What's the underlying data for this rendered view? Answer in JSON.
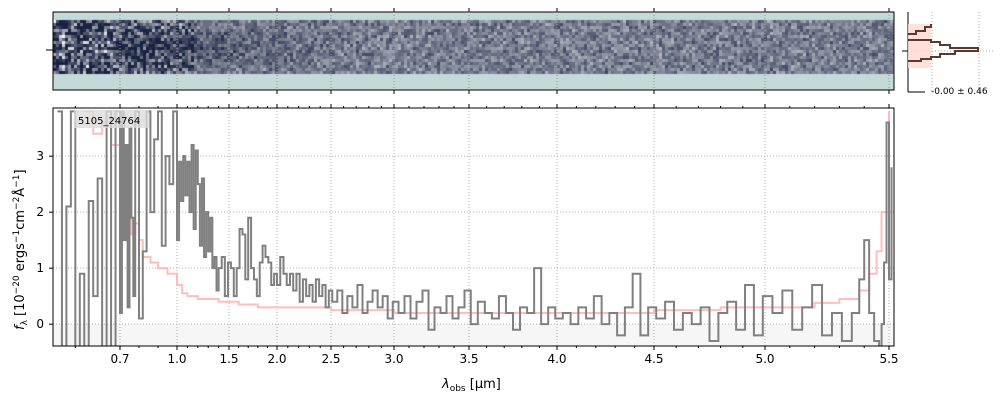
{
  "chart_data": {
    "type": "line",
    "object_label": "5105_24764",
    "xlabel": "λobs [μm]",
    "xlabel_main": "λ",
    "xlabel_sub": "obs",
    "xlabel_unit": " [μm]",
    "ylabel": "fλ [10^-20 ergs^-1 cm^-2 Å^-1]",
    "xticks": [
      0.7,
      1.0,
      1.5,
      2.0,
      2.5,
      3.0,
      3.5,
      4.0,
      4.5,
      5.0,
      5.5
    ],
    "xtick_labels": [
      "0.7",
      "1.0",
      "1.5",
      "2.0",
      "2.5",
      "3.0",
      "3.5",
      "4.0",
      "4.5",
      "5.0",
      "5.5"
    ],
    "yticks": [
      0,
      1,
      2,
      3
    ],
    "ytick_labels": [
      "0",
      "1",
      "2",
      "3"
    ],
    "ylim": [
      -0.39,
      3.86
    ],
    "xlim": [
      0.55,
      5.52
    ],
    "grid": true,
    "histogram_label": "-0.00 ± 0.46",
    "colors": {
      "data": "#808080",
      "model": "#ffb3b0",
      "hist": "#5a3a30",
      "hist_fill": "#ffd9cf",
      "image_bg": "#c3dad8"
    },
    "series": [
      {
        "name": "data",
        "points": [
          [
            0.56,
            3.8
          ],
          [
            0.57,
            -0.4
          ],
          [
            0.58,
            2.1
          ],
          [
            0.59,
            3.8
          ],
          [
            0.6,
            -0.4
          ],
          [
            0.61,
            0.9
          ],
          [
            0.62,
            -0.4
          ],
          [
            0.63,
            2.2
          ],
          [
            0.64,
            0.5
          ],
          [
            0.65,
            2.6
          ],
          [
            0.66,
            -0.4
          ],
          [
            0.67,
            3.8
          ],
          [
            0.68,
            -0.4
          ],
          [
            0.69,
            3.8
          ],
          [
            0.7,
            0.2
          ],
          [
            0.71,
            3.8
          ],
          [
            0.72,
            1.5
          ],
          [
            0.73,
            3.2
          ],
          [
            0.74,
            0.3
          ],
          [
            0.75,
            3.5
          ],
          [
            0.76,
            1.9
          ],
          [
            0.77,
            0.5
          ],
          [
            0.78,
            3.8
          ],
          [
            0.8,
            0.1
          ],
          [
            0.82,
            1.3
          ],
          [
            0.84,
            3.8
          ],
          [
            0.86,
            2.0
          ],
          [
            0.88,
            3.3
          ],
          [
            0.9,
            3.8
          ],
          [
            0.92,
            1.4
          ],
          [
            0.94,
            3.0
          ],
          [
            0.96,
            2.5
          ],
          [
            0.98,
            3.8
          ],
          [
            1.0,
            1.5
          ],
          [
            1.02,
            2.9
          ],
          [
            1.04,
            2.2
          ],
          [
            1.06,
            3.0
          ],
          [
            1.08,
            2.3
          ],
          [
            1.1,
            2.9
          ],
          [
            1.12,
            2.0
          ],
          [
            1.14,
            3.2
          ],
          [
            1.16,
            1.7
          ],
          [
            1.18,
            3.1
          ],
          [
            1.2,
            2.5
          ],
          [
            1.22,
            1.4
          ],
          [
            1.24,
            2.6
          ],
          [
            1.26,
            1.2
          ],
          [
            1.28,
            2.0
          ],
          [
            1.3,
            1.3
          ],
          [
            1.32,
            1.9
          ],
          [
            1.34,
            1.0
          ],
          [
            1.36,
            1.2
          ],
          [
            1.38,
            0.6
          ],
          [
            1.4,
            1.0
          ],
          [
            1.43,
            1.2
          ],
          [
            1.46,
            0.5
          ],
          [
            1.49,
            1.1
          ],
          [
            1.52,
            1.0
          ],
          [
            1.55,
            0.5
          ],
          [
            1.58,
            1.0
          ],
          [
            1.61,
            1.7
          ],
          [
            1.64,
            1.6
          ],
          [
            1.67,
            0.8
          ],
          [
            1.7,
            1.9
          ],
          [
            1.73,
            1.0
          ],
          [
            1.76,
            0.8
          ],
          [
            1.79,
            0.5
          ],
          [
            1.82,
            1.1
          ],
          [
            1.85,
            1.4
          ],
          [
            1.88,
            1.2
          ],
          [
            1.91,
            1.1
          ],
          [
            1.94,
            0.7
          ],
          [
            1.97,
            0.9
          ],
          [
            2.0,
            0.7
          ],
          [
            2.03,
            1.2
          ],
          [
            2.06,
            0.9
          ],
          [
            2.09,
            0.7
          ],
          [
            2.12,
            0.9
          ],
          [
            2.15,
            0.6
          ],
          [
            2.18,
            0.9
          ],
          [
            2.21,
            0.4
          ],
          [
            2.24,
            0.8
          ],
          [
            2.27,
            0.5
          ],
          [
            2.3,
            0.7
          ],
          [
            2.33,
            0.4
          ],
          [
            2.36,
            0.8
          ],
          [
            2.39,
            0.5
          ],
          [
            2.42,
            0.7
          ],
          [
            2.45,
            0.3
          ],
          [
            2.48,
            0.6
          ],
          [
            2.51,
            0.4
          ],
          [
            2.55,
            0.6
          ],
          [
            2.59,
            0.2
          ],
          [
            2.63,
            0.5
          ],
          [
            2.67,
            0.3
          ],
          [
            2.71,
            0.7
          ],
          [
            2.75,
            0.2
          ],
          [
            2.79,
            0.4
          ],
          [
            2.83,
            0.6
          ],
          [
            2.87,
            0.3
          ],
          [
            2.91,
            0.5
          ],
          [
            2.95,
            0.1
          ],
          [
            2.99,
            0.4
          ],
          [
            3.03,
            0.2
          ],
          [
            3.07,
            0.5
          ],
          [
            3.11,
            0.1
          ],
          [
            3.15,
            0.4
          ],
          [
            3.19,
            0.6
          ],
          [
            3.23,
            -0.1
          ],
          [
            3.27,
            0.3
          ],
          [
            3.31,
            0.2
          ],
          [
            3.35,
            0.5
          ],
          [
            3.39,
            0.1
          ],
          [
            3.43,
            0.3
          ],
          [
            3.47,
            0.6
          ],
          [
            3.51,
            0.0
          ],
          [
            3.55,
            0.4
          ],
          [
            3.59,
            0.2
          ],
          [
            3.63,
            0.1
          ],
          [
            3.67,
            0.5
          ],
          [
            3.71,
            0.2
          ],
          [
            3.75,
            -0.1
          ],
          [
            3.79,
            0.3
          ],
          [
            3.83,
            0.2
          ],
          [
            3.87,
            1.0
          ],
          [
            3.91,
            0.0
          ],
          [
            3.95,
            0.3
          ],
          [
            3.99,
            0.1
          ],
          [
            4.03,
            0.2
          ],
          [
            4.07,
            0.0
          ],
          [
            4.11,
            0.3
          ],
          [
            4.15,
            0.1
          ],
          [
            4.19,
            0.5
          ],
          [
            4.23,
            0.0
          ],
          [
            4.27,
            0.2
          ],
          [
            4.31,
            -0.2
          ],
          [
            4.35,
            0.3
          ],
          [
            4.39,
            0.9
          ],
          [
            4.43,
            -0.2
          ],
          [
            4.47,
            0.3
          ],
          [
            4.51,
            0.1
          ],
          [
            4.55,
            0.4
          ],
          [
            4.59,
            -0.1
          ],
          [
            4.63,
            0.2
          ],
          [
            4.67,
            0.0
          ],
          [
            4.71,
            0.3
          ],
          [
            4.75,
            -0.3
          ],
          [
            4.79,
            0.2
          ],
          [
            4.83,
            0.4
          ],
          [
            4.87,
            -0.1
          ],
          [
            4.91,
            0.7
          ],
          [
            4.95,
            -0.2
          ],
          [
            4.99,
            0.5
          ],
          [
            5.03,
            0.2
          ],
          [
            5.07,
            0.6
          ],
          [
            5.11,
            -0.1
          ],
          [
            5.15,
            0.3
          ],
          [
            5.19,
            0.7
          ],
          [
            5.23,
            -0.2
          ],
          [
            5.27,
            0.2
          ],
          [
            5.31,
            -0.3
          ],
          [
            5.35,
            0.2
          ],
          [
            5.38,
            0.8
          ],
          [
            5.4,
            1.5
          ],
          [
            5.42,
            0.2
          ],
          [
            5.44,
            -0.3
          ],
          [
            5.46,
            -0.4
          ],
          [
            5.47,
            0.0
          ],
          [
            5.48,
            1.1
          ],
          [
            5.49,
            3.6
          ],
          [
            5.5,
            0.8
          ],
          [
            5.51,
            2.8
          ]
        ]
      },
      {
        "name": "model",
        "points": [
          [
            0.62,
            3.8
          ],
          [
            0.64,
            3.4
          ],
          [
            0.66,
            3.6
          ],
          [
            0.68,
            3.2
          ],
          [
            0.7,
            2.3
          ],
          [
            0.72,
            2.6
          ],
          [
            0.74,
            1.9
          ],
          [
            0.76,
            1.6
          ],
          [
            0.78,
            1.8
          ],
          [
            0.8,
            1.5
          ],
          [
            0.82,
            1.2
          ],
          [
            0.86,
            1.1
          ],
          [
            0.9,
            1.0
          ],
          [
            0.95,
            0.9
          ],
          [
            1.0,
            0.7
          ],
          [
            1.05,
            0.55
          ],
          [
            1.1,
            0.5
          ],
          [
            1.2,
            0.45
          ],
          [
            1.4,
            0.4
          ],
          [
            1.6,
            0.35
          ],
          [
            1.8,
            0.3
          ],
          [
            2.0,
            0.3
          ],
          [
            2.5,
            0.25
          ],
          [
            3.0,
            0.2
          ],
          [
            3.5,
            0.2
          ],
          [
            4.0,
            0.2
          ],
          [
            4.5,
            0.25
          ],
          [
            4.8,
            0.3
          ],
          [
            5.0,
            0.3
          ],
          [
            5.2,
            0.38
          ],
          [
            5.3,
            0.45
          ],
          [
            5.38,
            0.6
          ],
          [
            5.42,
            0.9
          ],
          [
            5.45,
            1.3
          ],
          [
            5.47,
            2.0
          ],
          [
            5.49,
            3.0
          ],
          [
            5.5,
            3.8
          ]
        ]
      }
    ]
  }
}
